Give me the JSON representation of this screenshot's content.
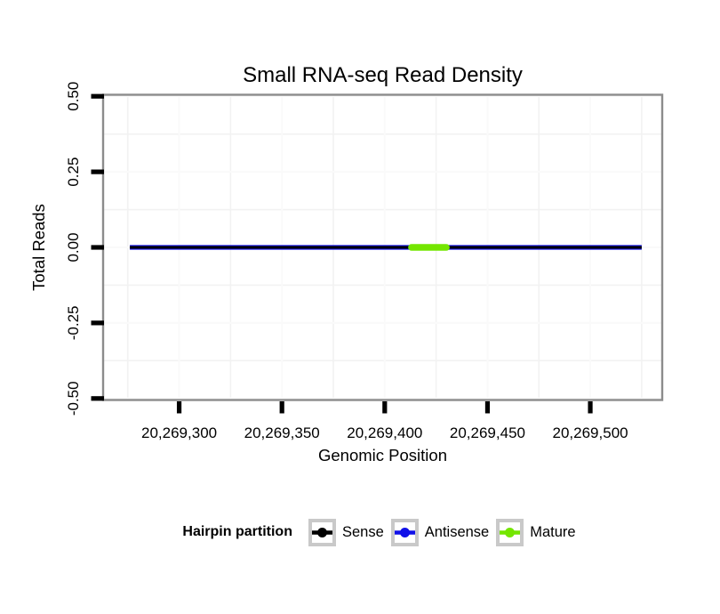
{
  "chart_data": {
    "type": "line",
    "title": "Small RNA-seq Read Density",
    "xlabel": "Genomic Position",
    "ylabel": "Total Reads",
    "xlim": [
      20269263,
      20269535
    ],
    "ylim": [
      -0.505,
      0.505
    ],
    "grid": {
      "major": true,
      "minor": true
    },
    "x_ticks": [
      {
        "value": 20269300,
        "label": "20,269,300"
      },
      {
        "value": 20269350,
        "label": "20,269,350"
      },
      {
        "value": 20269400,
        "label": "20,269,400"
      },
      {
        "value": 20269450,
        "label": "20,269,450"
      },
      {
        "value": 20269500,
        "label": "20,269,500"
      }
    ],
    "y_ticks": [
      {
        "value": 0.5,
        "label": "0.50"
      },
      {
        "value": 0.25,
        "label": "0.25"
      },
      {
        "value": 0,
        "label": "0.00"
      },
      {
        "value": -0.25,
        "label": "-0.25"
      },
      {
        "value": -0.5,
        "label": "-0.50"
      }
    ],
    "x_minor_gridlines": [
      20269275,
      20269325,
      20269375,
      20269425,
      20269475,
      20269525
    ],
    "y_minor_gridlines": [
      0.375,
      0.125,
      -0.125,
      -0.375
    ],
    "series": [
      {
        "name": "Sense",
        "color": "#000000",
        "width": 3,
        "zorder": 2,
        "linecap": "butt",
        "points": [
          {
            "x": 20269276,
            "y": 0
          },
          {
            "x": 20269525,
            "y": 0
          }
        ]
      },
      {
        "name": "Antisense",
        "color": "#1010E8",
        "width": 5.2,
        "zorder": 1,
        "linecap": "butt",
        "points": [
          {
            "x": 20269276,
            "y": 0
          },
          {
            "x": 20269525,
            "y": 0
          }
        ]
      },
      {
        "name": "Mature",
        "color": "#74E600",
        "width": 7.5,
        "zorder": 3,
        "linecap": "round",
        "points": [
          {
            "x": 20269413,
            "y": 0
          },
          {
            "x": 20269430,
            "y": 0
          }
        ]
      }
    ],
    "legend": {
      "title": "Hairpin partition",
      "position": "bottom",
      "entries": [
        {
          "label": "Sense",
          "color": "#000000"
        },
        {
          "label": "Antisense",
          "color": "#1010E8"
        },
        {
          "label": "Mature",
          "color": "#74E600"
        }
      ]
    }
  },
  "colors": {
    "panel_background": "#FFFFFF",
    "panel_border": "#8C8C8C",
    "grid_major": "#FAFAFA",
    "grid_minor": "#F2F2F2",
    "tick": "#000000",
    "text": "#000000",
    "legend_key_border": "#C9C9C9"
  }
}
